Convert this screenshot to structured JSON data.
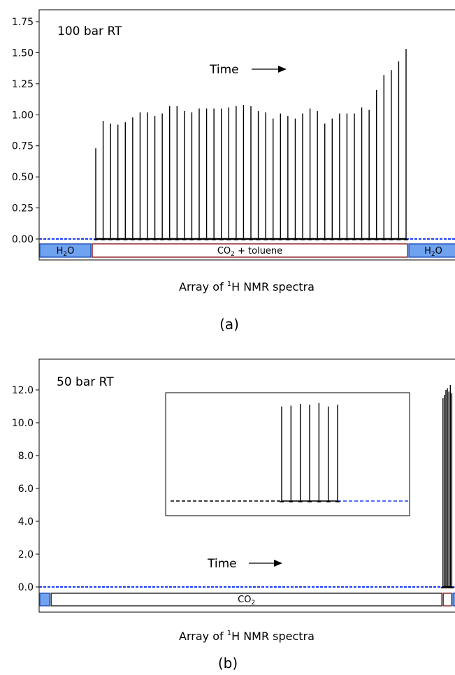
{
  "chart_data": [
    {
      "type": "bar",
      "panel_label": "(a)",
      "annotation": "100 bar RT",
      "arrow_label": "Time",
      "xlabel_prefix": "Array of ",
      "xlabel_superscript": "1",
      "xlabel_suffix": "H NMR spectra",
      "ylim": [
        0,
        1.75
      ],
      "yticks": [
        "0.00",
        "0.25",
        "0.50",
        "0.75",
        "1.00",
        "1.25",
        "1.50",
        "1.75"
      ],
      "ytick_values": [
        0,
        0.25,
        0.5,
        0.75,
        1.0,
        1.25,
        1.5,
        1.75
      ],
      "baseline_left_color": "#1a3cff",
      "baseline_right_color": "#1a3cff",
      "peak_color": "#000000",
      "segments": [
        {
          "label_main": "H",
          "label_sub": "2",
          "label_rest": "O",
          "fill": "#6fa3ef",
          "border": "#1f4fb8",
          "span": [
            0,
            0.125
          ]
        },
        {
          "label_main": "CO",
          "label_sub": "2",
          "label_rest": " + toluene",
          "fill": "#ffffff",
          "border": "#8b1a1a",
          "span": [
            0.125,
            0.88
          ]
        },
        {
          "label_main": "H",
          "label_sub": "2",
          "label_rest": "O",
          "fill": "#6fa3ef",
          "border": "#1f4fb8",
          "span": [
            0.88,
            1.0
          ]
        }
      ],
      "peak_region": [
        0.135,
        0.875
      ],
      "values": [
        0.73,
        0.95,
        0.93,
        0.92,
        0.94,
        0.98,
        1.02,
        1.02,
        0.99,
        1.01,
        1.07,
        1.07,
        1.03,
        1.02,
        1.05,
        1.05,
        1.05,
        1.05,
        1.06,
        1.07,
        1.08,
        1.07,
        1.03,
        1.02,
        0.97,
        1.01,
        0.99,
        0.97,
        1.01,
        1.05,
        1.03,
        0.93,
        0.97,
        1.01,
        1.01,
        1.01,
        1.06,
        1.04,
        1.2,
        1.32,
        1.36,
        1.43,
        1.53
      ]
    },
    {
      "type": "bar",
      "panel_label": "(b)",
      "annotation": "50 bar RT",
      "arrow_label": "Time",
      "xlabel_prefix": "Array of ",
      "xlabel_superscript": "1",
      "xlabel_suffix": "H NMR spectra",
      "ylim": [
        -0.3,
        14
      ],
      "yticks": [
        "0.0",
        "2.0",
        "4.0",
        "6.0",
        "8.0",
        "10.0",
        "12.0"
      ],
      "ytick_values": [
        0,
        2,
        4,
        6,
        8,
        10,
        12
      ],
      "baseline_left_color": "#1a3cff",
      "baseline_right_color": "#1a3cff",
      "peak_color": "#000000",
      "segments": [
        {
          "label_main": "",
          "label_sub": "",
          "label_rest": "",
          "fill": "#6fa3ef",
          "border": "#1f4fb8",
          "span": [
            0,
            0.027
          ]
        },
        {
          "label_main": "CO",
          "label_sub": "2",
          "label_rest": "",
          "fill": "#ffffff",
          "border": "#222222",
          "span": [
            0.027,
            0.962
          ]
        },
        {
          "label_main": "",
          "label_sub": "",
          "label_rest": "",
          "fill": "#ffffff",
          "border": "#8b1a1a",
          "span": [
            0.962,
            0.985
          ]
        },
        {
          "label_main": "",
          "label_sub": "",
          "label_rest": "",
          "fill": "#6fa3ef",
          "border": "#1f4fb8",
          "span": [
            0.985,
            1.0
          ]
        }
      ],
      "peak_region": [
        0.963,
        0.984
      ],
      "values": [
        11.5,
        11.7,
        12.0,
        12.1,
        11.9,
        12.3,
        11.8
      ],
      "inset": {
        "values": [
          11.0,
          11.1,
          11.3,
          11.2,
          11.4,
          11.0,
          11.2
        ],
        "left_dash_color": "#000000",
        "right_dash_color": "#1a3cff"
      }
    }
  ]
}
